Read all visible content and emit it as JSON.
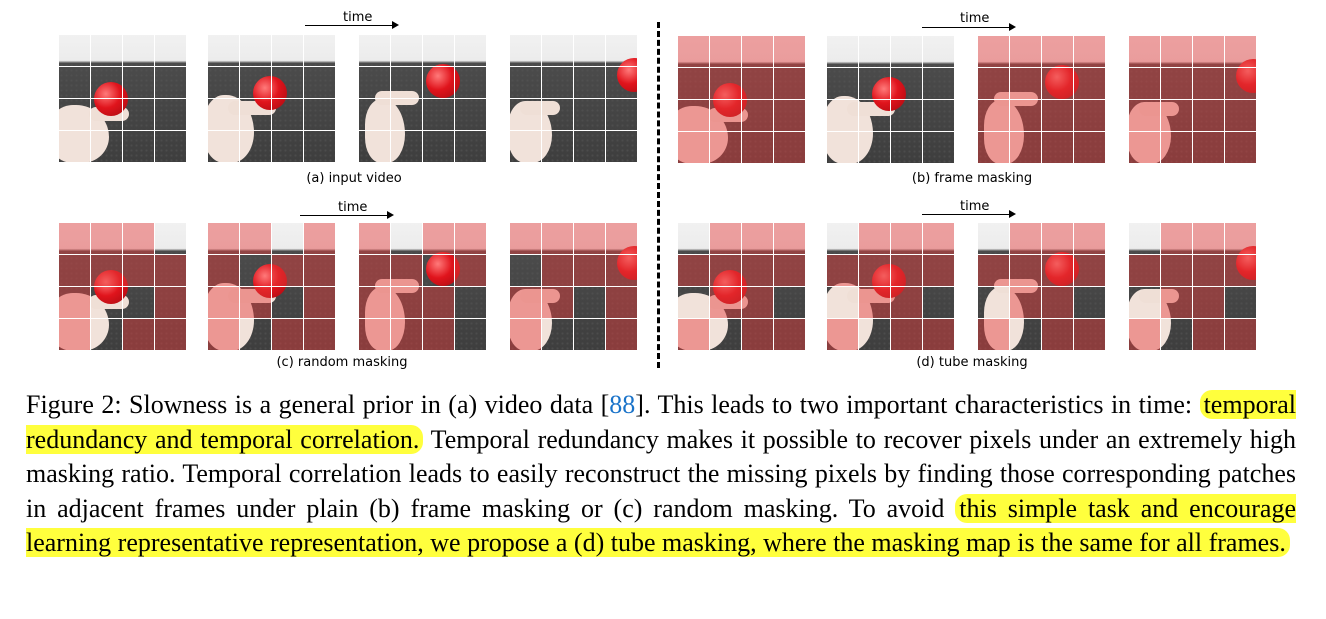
{
  "panels": [
    {
      "id": "a",
      "time_label": "time",
      "sublabel": "(a) input video"
    },
    {
      "id": "b",
      "time_label": "time",
      "sublabel": "(b) frame masking"
    },
    {
      "id": "c",
      "time_label": "time",
      "sublabel": "(c) random masking"
    },
    {
      "id": "d",
      "time_label": "time",
      "sublabel": "(d) tube masking"
    }
  ],
  "caption": {
    "part1": "Figure 2: Slowness is a general prior in (a) video data [",
    "cite": "88",
    "part2": "]. This leads to two important characteristics in time: ",
    "highlight1": "temporal redundancy and temporal correlation.",
    "part3": " Temporal redundancy makes it possible to recover pixels under an extremely high masking ratio. Temporal correlation leads to easily reconstruct the missing pixels by finding those corresponding patches in adjacent frames under plain (b) frame masking or (c) random masking. To avoid ",
    "highlight2": "this simple task and encourage learning representative representation, we propose a (d) tube masking, where the masking map is the same for all frames."
  },
  "colors": {
    "highlight": "#ffff3d",
    "citation": "#1a73c9",
    "mask": "#e63c3c"
  }
}
